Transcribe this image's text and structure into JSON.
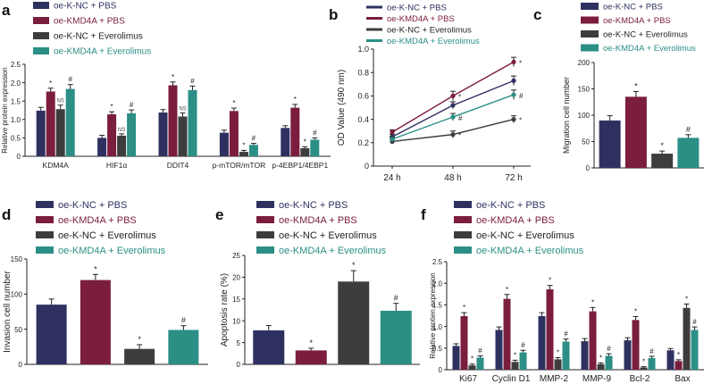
{
  "figure": {
    "colors": {
      "navy": "#2e3160",
      "maroon": "#7b1d3f",
      "dark": "#3d3d3d",
      "teal": "#2b8f86",
      "axis": "#222222"
    },
    "legend_labels": [
      "oe-K-NC + PBS",
      "oe-KMD4A + PBS",
      "oe-K-NC + Everolimus",
      "oe-KMD4A + Everolimus"
    ]
  },
  "chart_data": [
    {
      "panel": "a",
      "type": "bar",
      "title": "",
      "xlabel": "",
      "ylabel": "Relative protein expression",
      "ylim": [
        0,
        2.5
      ],
      "yticks": [
        0,
        0.5,
        1.0,
        1.5,
        2.0,
        2.5
      ],
      "ytick_labels": [
        "0",
        "0.5",
        "1.0",
        "1.5",
        "2.0",
        "2.5"
      ],
      "categories": [
        "KDM4A",
        "HIF1α",
        "DDIT4",
        "p-mTOR/mTOR",
        "p-4EBP1/4EBP1"
      ],
      "series": [
        {
          "name": "oe-K-NC + PBS",
          "values": [
            1.24,
            0.5,
            1.19,
            0.64,
            0.77
          ],
          "errors": [
            0.09,
            0.07,
            0.08,
            0.07,
            0.06
          ],
          "marks": [
            "",
            "",
            "",
            "",
            ""
          ]
        },
        {
          "name": "oe-KMD4A + PBS",
          "values": [
            1.76,
            1.14,
            1.93,
            1.23,
            1.32
          ],
          "errors": [
            0.09,
            0.07,
            0.09,
            0.08,
            0.09
          ],
          "marks": [
            "*",
            "*",
            "*",
            "*",
            "*"
          ]
        },
        {
          "name": "oe-K-NC + Everolimus",
          "values": [
            1.28,
            0.56,
            1.08,
            0.12,
            0.22
          ],
          "errors": [
            0.11,
            0.05,
            0.1,
            0.04,
            0.04
          ],
          "marks": [
            "NS",
            "NS",
            "NS",
            "*",
            "*"
          ]
        },
        {
          "name": "oe-KMD4A + Everolimus",
          "values": [
            1.83,
            1.17,
            1.8,
            0.31,
            0.45
          ],
          "errors": [
            0.12,
            0.09,
            0.11,
            0.04,
            0.05
          ],
          "marks": [
            "#",
            "#",
            "#",
            "#",
            "#"
          ]
        }
      ]
    },
    {
      "panel": "b",
      "type": "line",
      "title": "",
      "xlabel": "",
      "ylabel": "OD Value (490 nm)",
      "ylim": [
        0,
        1.0
      ],
      "yticks": [
        0,
        0.2,
        0.4,
        0.6,
        0.8,
        1.0
      ],
      "ytick_labels": [
        "0",
        "0.2",
        "0.4",
        "0.6",
        "0.8",
        "1.0"
      ],
      "categories": [
        "24 h",
        "48 h",
        "72 h"
      ],
      "series": [
        {
          "name": "oe-K-NC + PBS",
          "values": [
            0.25,
            0.52,
            0.73
          ],
          "errors": [
            0.02,
            0.03,
            0.04
          ],
          "marks": [
            "",
            "",
            ""
          ]
        },
        {
          "name": "oe-KMD4A + PBS",
          "values": [
            0.29,
            0.6,
            0.89
          ],
          "errors": [
            0.02,
            0.04,
            0.04
          ],
          "marks": [
            "",
            "*",
            "*"
          ]
        },
        {
          "name": "oe-K-NC + Everolimus",
          "values": [
            0.21,
            0.27,
            0.4
          ],
          "errors": [
            0.02,
            0.03,
            0.03
          ],
          "marks": [
            "",
            "*",
            "*"
          ]
        },
        {
          "name": "oe-KMD4A + Everolimus",
          "values": [
            0.23,
            0.42,
            0.61
          ],
          "errors": [
            0.02,
            0.03,
            0.04
          ],
          "marks": [
            "",
            "#",
            "#"
          ]
        }
      ]
    },
    {
      "panel": "c",
      "type": "bar",
      "title": "",
      "xlabel": "",
      "ylabel": "Migration cell number",
      "ylim": [
        0,
        200
      ],
      "yticks": [
        0,
        50,
        100,
        150,
        200
      ],
      "ytick_labels": [
        "0",
        "50",
        "100",
        "150",
        "200"
      ],
      "categories": [
        "oe-K-NC + PBS",
        "oe-KMD4A + PBS",
        "oe-K-NC + Everolimus",
        "oe-KMD4A + Everolimus"
      ],
      "values": [
        90,
        135,
        27,
        57
      ],
      "errors": [
        9,
        10,
        5,
        6
      ],
      "marks": [
        "",
        "*",
        "*",
        "#"
      ]
    },
    {
      "panel": "d",
      "type": "bar",
      "title": "",
      "xlabel": "",
      "ylabel": "Invasion cell number",
      "ylim": [
        0,
        150
      ],
      "yticks": [
        0,
        50,
        100,
        150
      ],
      "ytick_labels": [
        "0",
        "50",
        "100",
        "150"
      ],
      "categories": [
        "oe-K-NC + PBS",
        "oe-KMD4A + PBS",
        "oe-K-NC + Everolimus",
        "oe-KMD4A + Everolimus"
      ],
      "values": [
        85,
        120,
        22,
        49
      ],
      "errors": [
        8,
        8,
        6,
        6
      ],
      "marks": [
        "",
        "*",
        "*",
        "#"
      ]
    },
    {
      "panel": "e",
      "type": "bar",
      "title": "",
      "xlabel": "",
      "ylabel": "Apoptosis rate (%)",
      "ylim": [
        0,
        25
      ],
      "yticks": [
        0,
        5,
        10,
        15,
        20,
        25
      ],
      "ytick_labels": [
        "0",
        "5",
        "10",
        "15",
        "20",
        "25"
      ],
      "categories": [
        "oe-K-NC + PBS",
        "oe-KMD4A + PBS",
        "oe-K-NC + Everolimus",
        "oe-KMD4A + Everolimus"
      ],
      "values": [
        7.8,
        3.2,
        19.0,
        12.3
      ],
      "errors": [
        1.1,
        0.5,
        2.5,
        1.7
      ],
      "marks": [
        "",
        "*",
        "*",
        "#"
      ]
    },
    {
      "panel": "f",
      "type": "bar",
      "title": "",
      "xlabel": "",
      "ylabel": "Relative protien expression",
      "ylim": [
        0,
        2.5
      ],
      "yticks": [
        0,
        0.5,
        1.0,
        1.5,
        2.0,
        2.5
      ],
      "ytick_labels": [
        "0",
        "0.5",
        "1.0",
        "1.5",
        "2.0",
        "2.5"
      ],
      "categories": [
        "Ki67",
        "Cyclin D1",
        "MMP-2",
        "MMP-9",
        "Bcl-2",
        "Bax"
      ],
      "series": [
        {
          "name": "oe-K-NC + PBS",
          "values": [
            0.55,
            0.92,
            1.24,
            0.66,
            0.68,
            0.45
          ],
          "errors": [
            0.05,
            0.07,
            0.08,
            0.06,
            0.06,
            0.04
          ],
          "marks": [
            "",
            "",
            "",
            "",
            "",
            ""
          ]
        },
        {
          "name": "oe-KMD4A + PBS",
          "values": [
            1.24,
            1.64,
            1.86,
            1.35,
            1.15,
            0.2
          ],
          "errors": [
            0.08,
            0.1,
            0.09,
            0.09,
            0.08,
            0.03
          ],
          "marks": [
            "*",
            "*",
            "*",
            "*",
            "*",
            "*"
          ]
        },
        {
          "name": "oe-K-NC + Everolimus",
          "values": [
            0.1,
            0.18,
            0.24,
            0.13,
            0.05,
            1.43
          ],
          "errors": [
            0.03,
            0.04,
            0.04,
            0.03,
            0.02,
            0.09
          ],
          "marks": [
            "*",
            "*",
            "*",
            "*",
            "*",
            "*"
          ]
        },
        {
          "name": "oe-KMD4A + Everolimus",
          "values": [
            0.28,
            0.4,
            0.65,
            0.32,
            0.27,
            0.92
          ],
          "errors": [
            0.04,
            0.05,
            0.06,
            0.05,
            0.04,
            0.07
          ],
          "marks": [
            "#",
            "#",
            "#",
            "#",
            "#",
            "#"
          ]
        }
      ]
    }
  ]
}
